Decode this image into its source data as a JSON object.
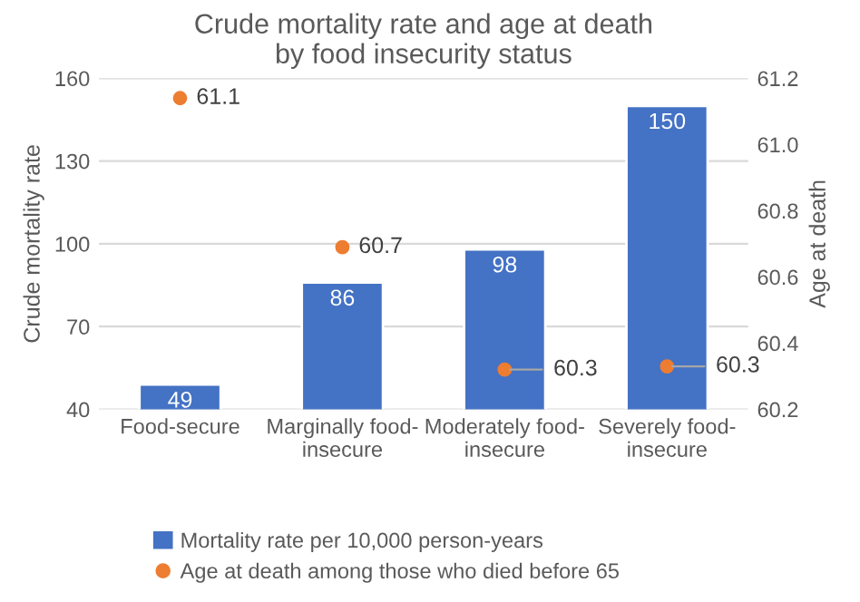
{
  "chart_data": {
    "type": "bar",
    "title": "Crude mortality rate and age at death\nby food insecurity status",
    "categories": [
      "Food-secure",
      "Marginally food-\ninsecure",
      "Moderately food-\ninsecure",
      "Severely food-\ninsecure"
    ],
    "series": [
      {
        "name": "Mortality rate per 10,000 person-years",
        "color": "#4472c4",
        "values": [
          49,
          86,
          98,
          150
        ],
        "value_labels": [
          "49",
          "86",
          "98",
          "150"
        ]
      },
      {
        "name": "Age at death among those who died before 65",
        "type": "scatter",
        "axis": "y2",
        "color": "#ed7d31",
        "values": [
          61.14,
          60.69,
          60.32,
          60.33
        ],
        "value_labels": [
          "61.1",
          "60.7",
          "60.3",
          "60.3"
        ]
      }
    ],
    "ylabel": "Crude mortality rate",
    "y2label": "Age at death",
    "ylim": [
      40,
      160
    ],
    "yticks": [
      40,
      70,
      100,
      130,
      160
    ],
    "y2lim": [
      60.2,
      61.2
    ],
    "y2ticks": [
      {
        "value": 60.2,
        "label": "60.2"
      },
      {
        "value": 60.4,
        "label": "60.4"
      },
      {
        "value": 60.6,
        "label": "60.6"
      },
      {
        "value": 60.8,
        "label": "60.8"
      },
      {
        "value": 61.0,
        "label": "61.0"
      },
      {
        "value": 61.2,
        "label": "61.2"
      }
    ],
    "grid": "y",
    "legend": "bottom",
    "marker": "circle"
  }
}
